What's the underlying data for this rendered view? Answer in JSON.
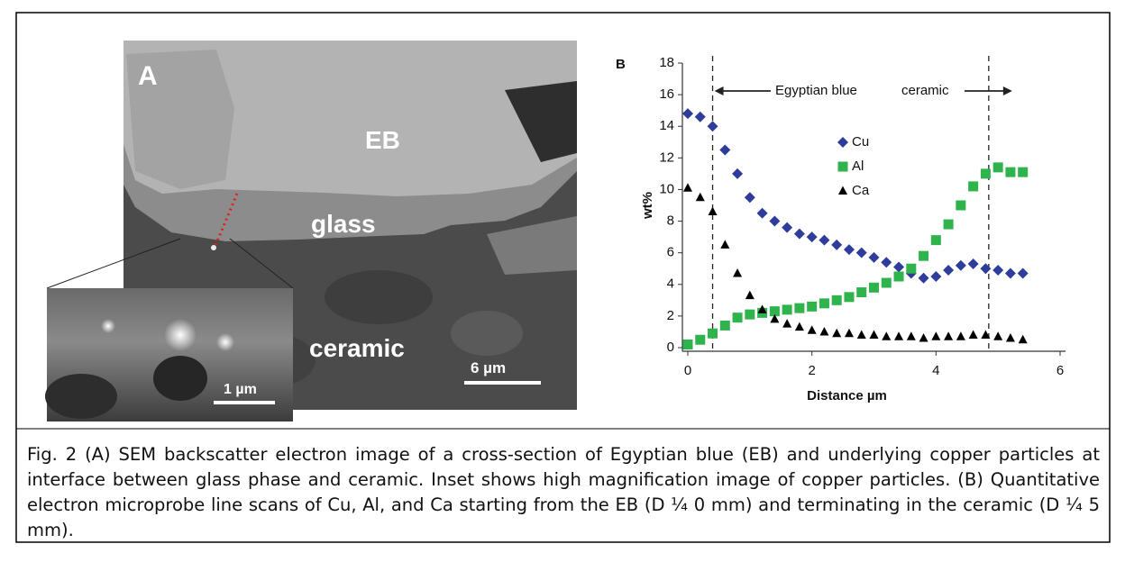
{
  "panel_a": {
    "label": "A",
    "region_labels": [
      "EB",
      "glass",
      "ceramic"
    ],
    "scale_bar": "6 µm",
    "inset_scale_bar": "1 µm"
  },
  "chart_data": {
    "type": "scatter",
    "panel_label": "B",
    "xlabel": "Distance µm",
    "ylabel": "wt%",
    "annotations": [
      "Egyptian blue",
      "ceramic"
    ],
    "vlines": [
      0.4,
      4.85
    ],
    "xlim": [
      0,
      6
    ],
    "ylim": [
      0,
      18
    ],
    "xticks": [
      0,
      2,
      4,
      6
    ],
    "yticks": [
      0,
      2,
      4,
      6,
      8,
      10,
      12,
      14,
      16,
      18
    ],
    "x": [
      0,
      0.2,
      0.4,
      0.6,
      0.8,
      1.0,
      1.2,
      1.4,
      1.6,
      1.8,
      2.0,
      2.2,
      2.4,
      2.6,
      2.8,
      3.0,
      3.2,
      3.4,
      3.6,
      3.8,
      4.0,
      4.2,
      4.4,
      4.6,
      4.8,
      5.0,
      5.2,
      5.4
    ],
    "series": [
      {
        "name": "Cu",
        "color": "#2e3d9c",
        "marker": "diamond",
        "values": [
          14.8,
          14.6,
          14,
          12.5,
          11,
          9.5,
          8.5,
          8,
          7.6,
          7.2,
          7.0,
          6.8,
          6.5,
          6.2,
          6.0,
          5.7,
          5.4,
          5.1,
          4.7,
          4.4,
          4.5,
          4.9,
          5.2,
          5.3,
          5.0,
          4.9,
          4.7,
          4.7
        ]
      },
      {
        "name": "Al",
        "color": "#2fb34c",
        "marker": "square",
        "values": [
          0.2,
          0.5,
          0.9,
          1.4,
          1.9,
          2.1,
          2.2,
          2.3,
          2.4,
          2.5,
          2.6,
          2.8,
          3.0,
          3.2,
          3.5,
          3.8,
          4.1,
          4.5,
          5.0,
          5.8,
          6.8,
          7.8,
          9.0,
          10.2,
          11.0,
          11.4,
          11.1,
          11.1
        ]
      },
      {
        "name": "Ca",
        "color": "#000000",
        "marker": "triangle",
        "values": [
          10.1,
          9.5,
          8.6,
          6.5,
          4.7,
          3.3,
          2.4,
          1.8,
          1.5,
          1.3,
          1.1,
          1.0,
          0.9,
          0.9,
          0.8,
          0.8,
          0.7,
          0.7,
          0.7,
          0.6,
          0.7,
          0.7,
          0.7,
          0.8,
          0.8,
          0.7,
          0.6,
          0.5
        ]
      }
    ]
  },
  "caption": "Fig. 2 (A) SEM backscatter electron image of a cross-section of Egyptian blue (EB) and underlying copper particles at interface between glass phase and ceramic. Inset shows high magnification image of copper particles. (B) Quantitative electron microprobe line scans of Cu, Al, and Ca starting from the EB (D ¼ 0 mm) and terminating in the ceramic (D ¼ 5 mm)."
}
